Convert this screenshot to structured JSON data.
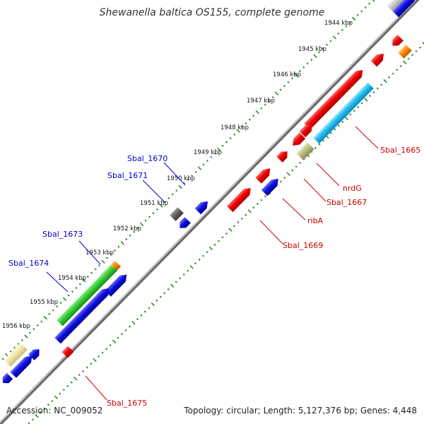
{
  "title": "Shewanella baltica OS155, complete genome",
  "footer": {
    "accession": "Accession: NC_009052",
    "summary": "Topology: circular; Length: 5,127,376 bp; Genes: 4,448"
  },
  "colors": {
    "backbone": "#8a8a8a",
    "tick": "#2a8a2a",
    "red": "#ee0000",
    "blue": "#1010dd",
    "green": "#33cc33",
    "cyan": "#22bbee",
    "orange": "#ff8800",
    "khaki": "#bdbd80",
    "gray": "#606060",
    "pale_yellow": "#f0e6a8",
    "label_blue": "#0000cc",
    "label_red": "#cc0000"
  },
  "kbp_labels": [
    "1944 kbp",
    "1945 kbp",
    "1946 kbp",
    "1947 kbp",
    "1948 kbp",
    "1949 kbp",
    "1950 kbp",
    "1951 kbp",
    "1952 kbp",
    "1953 kbp",
    "1954 kbp",
    "1955 kbp",
    "1956 kbp"
  ],
  "gene_labels": {
    "sbal_1665": "Sbal_1665",
    "nrdG": "nrdG",
    "sbal_1667": "Sbal_1667",
    "ribA": "ribA",
    "sbal_1669": "Sbal_1669",
    "sbal_1670": "Sbal_1670",
    "sbal_1671": "Sbal_1671",
    "sbal_1673": "Sbal_1673",
    "sbal_1674": "Sbal_1674",
    "sbal_1675": "Sbal_1675"
  }
}
